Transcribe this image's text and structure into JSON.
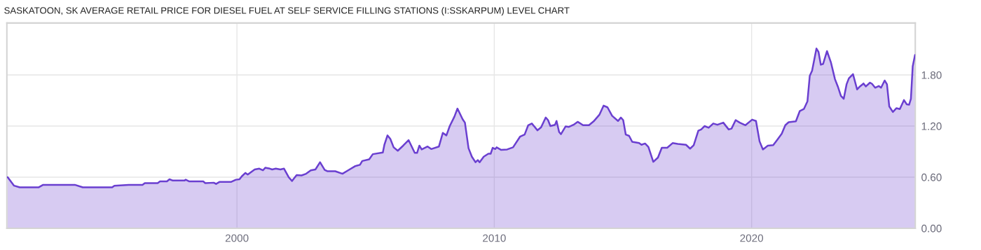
{
  "chart_data": {
    "type": "area",
    "title": "SASKATOON, SK AVERAGE RETAIL PRICE FOR DIESEL FUEL AT SELF SERVICE FILLING STATIONS (I:SSKARPUM) LEVEL CHART",
    "x": [
      1991.09,
      1991.34,
      1991.56,
      1992.29,
      1992.47,
      1993.7,
      1994.01,
      1995.15,
      1995.24,
      1995.79,
      1996.33,
      1996.42,
      1996.92,
      1997.01,
      1997.28,
      1997.38,
      1997.51,
      1997.96,
      1998.01,
      1998.15,
      1998.69,
      1998.77,
      1999.1,
      1999.19,
      1999.33,
      1999.78,
      1999.96,
      2000.1,
      2000.19,
      2000.33,
      2000.42,
      2000.69,
      2000.87,
      2001.01,
      2001.1,
      2001.28,
      2001.37,
      2001.51,
      2001.69,
      2001.83,
      2002.01,
      2002.14,
      2002.32,
      2002.51,
      2002.69,
      2002.87,
      2003.05,
      2003.23,
      2003.41,
      2003.51,
      2003.82,
      2004.1,
      2004.32,
      2004.6,
      2004.78,
      2004.87,
      2005.14,
      2005.28,
      2005.67,
      2005.73,
      2005.85,
      2005.96,
      2006.09,
      2006.25,
      2006.46,
      2006.67,
      2006.91,
      2007.0,
      2007.09,
      2007.18,
      2007.41,
      2007.55,
      2007.85,
      2008.0,
      2008.14,
      2008.27,
      2008.45,
      2008.57,
      2008.77,
      2008.86,
      2009.0,
      2009.13,
      2009.27,
      2009.36,
      2009.43,
      2009.59,
      2009.77,
      2009.86,
      2009.94,
      2010.04,
      2010.09,
      2010.27,
      2010.5,
      2010.73,
      2011.0,
      2011.18,
      2011.32,
      2011.46,
      2011.68,
      2011.82,
      2012.0,
      2012.09,
      2012.18,
      2012.36,
      2012.42,
      2012.52,
      2012.59,
      2012.77,
      2012.9,
      2013.08,
      2013.24,
      2013.45,
      2013.68,
      2013.86,
      2014.09,
      2014.25,
      2014.4,
      2014.58,
      2014.81,
      2014.92,
      2015.01,
      2015.11,
      2015.24,
      2015.36,
      2015.63,
      2015.72,
      2015.86,
      2015.99,
      2016.18,
      2016.36,
      2016.51,
      2016.72,
      2016.93,
      2017.13,
      2017.45,
      2017.61,
      2017.75,
      2017.93,
      2018.04,
      2018.17,
      2018.33,
      2018.51,
      2018.67,
      2018.9,
      2019.11,
      2019.22,
      2019.38,
      2019.54,
      2019.76,
      2020.02,
      2020.17,
      2020.31,
      2020.44,
      2020.63,
      2020.84,
      2020.99,
      2021.17,
      2021.31,
      2021.44,
      2021.72,
      2021.87,
      2022.03,
      2022.17,
      2022.26,
      2022.35,
      2022.52,
      2022.6,
      2022.69,
      2022.78,
      2022.93,
      2023.08,
      2023.24,
      2023.35,
      2023.47,
      2023.58,
      2023.69,
      2023.78,
      2023.94,
      2024.1,
      2024.21,
      2024.35,
      2024.44,
      2024.6,
      2024.68,
      2024.8,
      2024.94,
      2025.03,
      2025.17,
      2025.26,
      2025.35,
      2025.49,
      2025.63,
      2025.76,
      2025.92,
      2026.03,
      2026.12,
      2026.19,
      2026.26,
      2026.35
    ],
    "series": [
      {
        "color": "#6a3fd0",
        "values": [
          0.6,
          0.5,
          0.48,
          0.48,
          0.51,
          0.51,
          0.48,
          0.48,
          0.5,
          0.51,
          0.51,
          0.53,
          0.53,
          0.55,
          0.55,
          0.575,
          0.56,
          0.56,
          0.57,
          0.55,
          0.55,
          0.53,
          0.535,
          0.52,
          0.545,
          0.545,
          0.57,
          0.575,
          0.61,
          0.65,
          0.63,
          0.69,
          0.7,
          0.68,
          0.71,
          0.7,
          0.69,
          0.7,
          0.69,
          0.7,
          0.6,
          0.555,
          0.625,
          0.62,
          0.64,
          0.68,
          0.69,
          0.775,
          0.685,
          0.67,
          0.67,
          0.64,
          0.68,
          0.73,
          0.745,
          0.79,
          0.81,
          0.87,
          0.89,
          0.98,
          1.09,
          1.05,
          0.95,
          0.91,
          0.97,
          1.035,
          0.885,
          0.885,
          0.97,
          0.925,
          0.96,
          0.93,
          0.96,
          1.12,
          1.09,
          1.2,
          1.31,
          1.405,
          1.28,
          1.24,
          0.94,
          0.84,
          0.775,
          0.8,
          0.775,
          0.84,
          0.875,
          0.875,
          0.945,
          0.93,
          0.95,
          0.92,
          0.925,
          0.95,
          1.075,
          1.1,
          1.21,
          1.23,
          1.15,
          1.185,
          1.3,
          1.27,
          1.2,
          1.215,
          1.26,
          1.13,
          1.105,
          1.195,
          1.19,
          1.215,
          1.25,
          1.21,
          1.21,
          1.255,
          1.335,
          1.44,
          1.42,
          1.32,
          1.26,
          1.3,
          1.27,
          1.1,
          1.085,
          1.015,
          1.0,
          0.98,
          0.995,
          0.955,
          0.78,
          0.83,
          0.945,
          0.945,
          1.0,
          0.99,
          0.98,
          0.935,
          0.975,
          1.145,
          1.16,
          1.2,
          1.18,
          1.23,
          1.215,
          1.24,
          1.16,
          1.17,
          1.27,
          1.24,
          1.21,
          1.275,
          1.26,
          1.02,
          0.925,
          0.97,
          0.975,
          1.035,
          1.11,
          1.21,
          1.245,
          1.255,
          1.375,
          1.4,
          1.49,
          1.79,
          1.85,
          2.11,
          2.07,
          1.92,
          1.93,
          2.08,
          1.95,
          1.75,
          1.665,
          1.555,
          1.52,
          1.69,
          1.76,
          1.81,
          1.63,
          1.665,
          1.7,
          1.665,
          1.71,
          1.695,
          1.65,
          1.67,
          1.65,
          1.735,
          1.69,
          1.43,
          1.365,
          1.41,
          1.4,
          1.505,
          1.455,
          1.45,
          1.52,
          1.9,
          2.035
        ]
      }
    ],
    "xlim": [
      1991.06,
      2026.36
    ],
    "xticks": [
      2000,
      2010,
      2020
    ],
    "ylim": [
      0,
      2.41
    ],
    "yticks": [
      {
        "value": 0,
        "label": "0.00"
      },
      {
        "value": 0.6,
        "label": "0.60"
      },
      {
        "value": 1.2,
        "label": "1.20"
      },
      {
        "value": 1.8,
        "label": "1.80"
      }
    ],
    "grid": true,
    "legend": false
  }
}
